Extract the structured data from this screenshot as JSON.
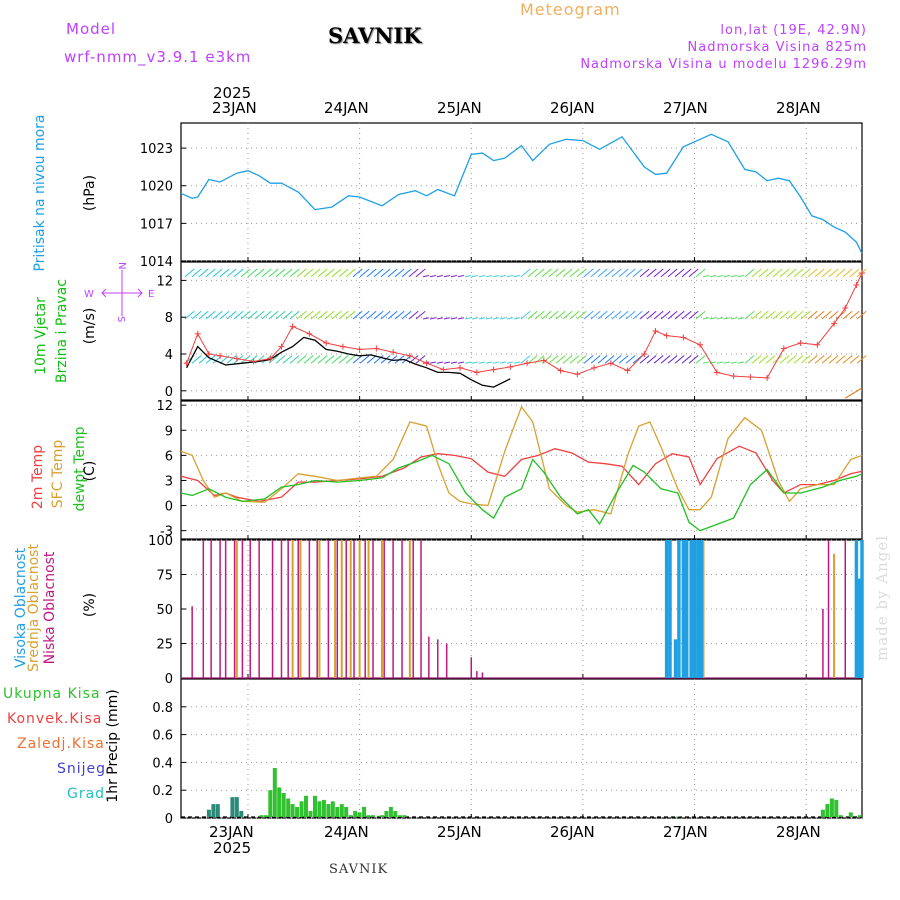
{
  "header": {
    "model_label": "Model",
    "model_name": "wrf-nmm_v3.9.1 e3km",
    "title": "SAVNIK",
    "product": "Meteogram",
    "coords": "lon,lat (19E, 42.9N)",
    "elevation": "Nadmorska Visina 825m",
    "model_elevation": "Nadmorska Visina u modelu 1296.29m"
  },
  "date_axis": {
    "year": "2025",
    "days": [
      "23JAN",
      "24JAN",
      "25JAN",
      "26JAN",
      "27JAN",
      "28JAN"
    ]
  },
  "footer": {
    "station": "SAVNIK",
    "credit": "made by Angel"
  },
  "colors": {
    "pressure": "#1ea0e6",
    "wind_label": "#10c010",
    "temp2m": "#f04040",
    "sfc_temp": "#d8a030",
    "dewpt": "#20c020",
    "high_cloud": "#20a0e0",
    "mid_cloud": "#d8a030",
    "low_cloud": "#c01880",
    "precip_total": "#30c030",
    "precip_conv": "#f04040",
    "precip_frz": "#f07030",
    "precip_snow": "#4040d0",
    "precip_grad": "#20c0c0",
    "compass": "#c040ff"
  },
  "labels": {
    "pressure": [
      "Pritisak na nivou mora",
      "(hPa)"
    ],
    "wind": [
      "10m Vjetar",
      "Brzina i Pravac",
      "(m/s)"
    ],
    "compass": [
      "W",
      "E",
      "N",
      "S"
    ],
    "temp": [
      "2m Temp",
      "SFC Temp",
      "dewpt Temp",
      "(C)"
    ],
    "cloud": [
      "Visoka Oblacnost",
      "Srednja Oblacnost",
      "Niska Oblacnost",
      "(%)"
    ],
    "precip_legend": [
      "Ukupna Kisa",
      "Konvek.Kisa",
      "Zaledj.Kisa",
      "Snijeg",
      "Grad"
    ],
    "precip_axis": "1hr Precip (mm)"
  },
  "chart_data": [
    {
      "type": "line",
      "panel": "pressure",
      "title": "Pritisak na nivou mora",
      "ylabel": "(hPa)",
      "ylim": [
        1014,
        1025
      ],
      "yticks": [
        "1014",
        "1017",
        "1020",
        "1023"
      ],
      "xlim": [
        -0.6,
        5.5
      ],
      "series": [
        {
          "name": "MSLP",
          "x": [
            -0.6,
            -0.5,
            -0.45,
            -0.35,
            -0.25,
            -0.1,
            0,
            0.1,
            0.2,
            0.3,
            0.45,
            0.6,
            0.75,
            0.9,
            1.0,
            1.2,
            1.35,
            1.5,
            1.6,
            1.7,
            1.85,
            2.0,
            2.1,
            2.2,
            2.3,
            2.45,
            2.55,
            2.7,
            2.85,
            3.0,
            3.15,
            3.35,
            3.55,
            3.65,
            3.75,
            3.9,
            4.0,
            4.15,
            4.3,
            4.45,
            4.55,
            4.65,
            4.75,
            4.85,
            4.95,
            5.05,
            5.15,
            5.25,
            5.35,
            5.45,
            5.5
          ],
          "values": [
            1019.4,
            1019.0,
            1019.1,
            1020.5,
            1020.3,
            1021.0,
            1021.2,
            1020.8,
            1020.2,
            1020.2,
            1019.5,
            1018.1,
            1018.3,
            1019.2,
            1019.1,
            1018.4,
            1019.3,
            1019.6,
            1019.2,
            1019.7,
            1019.2,
            1022.5,
            1022.6,
            1022.0,
            1022.2,
            1023.2,
            1022.0,
            1023.3,
            1023.7,
            1023.6,
            1022.9,
            1023.9,
            1021.5,
            1020.9,
            1021.0,
            1023.1,
            1023.5,
            1024.1,
            1023.5,
            1021.3,
            1021.1,
            1020.4,
            1020.6,
            1020.4,
            1019.1,
            1017.6,
            1017.3,
            1016.7,
            1016.3,
            1015.5,
            1014.6
          ]
        }
      ]
    },
    {
      "type": "line",
      "panel": "wind",
      "title": "10m Vjetar Brzina i Pravac",
      "ylabel": "(m/s)",
      "ylim": [
        -1,
        14
      ],
      "yticks": [
        "0",
        "4",
        "8",
        "12"
      ],
      "xlim": [
        -0.6,
        5.5
      ],
      "series": [
        {
          "name": "wind speed (black)",
          "x": [
            -0.55,
            -0.45,
            -0.35,
            -0.2,
            -0.05,
            0.1,
            0.2,
            0.3,
            0.4,
            0.5,
            0.6,
            0.7,
            0.8,
            0.9,
            1.0,
            1.1,
            1.2,
            1.3,
            1.4,
            1.5,
            1.6,
            1.7,
            1.8,
            1.9,
            2.0,
            2.1,
            2.2,
            2.35
          ],
          "values": [
            2.5,
            4.8,
            3.6,
            2.8,
            3.0,
            3.2,
            3.4,
            4.2,
            4.8,
            5.8,
            5.5,
            4.5,
            4.3,
            4.0,
            3.8,
            3.9,
            3.6,
            3.3,
            3.4,
            2.9,
            2.5,
            2.0,
            2.0,
            1.9,
            1.2,
            0.6,
            0.4,
            1.3
          ]
        },
        {
          "name": "gust (red markers)",
          "x": [
            -0.55,
            -0.45,
            -0.35,
            -0.25,
            -0.1,
            0.05,
            0.2,
            0.3,
            0.4,
            0.55,
            0.7,
            0.85,
            1.0,
            1.15,
            1.3,
            1.45,
            1.6,
            1.75,
            1.9,
            2.05,
            2.2,
            2.35,
            2.5,
            2.65,
            2.8,
            2.95,
            3.1,
            3.25,
            3.4,
            3.55,
            3.65,
            3.75,
            3.9,
            4.05,
            4.2,
            4.35,
            4.5,
            4.65,
            4.8,
            4.95,
            5.1,
            5.25,
            5.35,
            5.45,
            5.5
          ],
          "values": [
            3.0,
            6.2,
            4.0,
            3.8,
            3.5,
            3.2,
            3.5,
            4.8,
            7.0,
            6.2,
            5.2,
            4.8,
            4.5,
            4.6,
            4.2,
            3.8,
            3.0,
            2.3,
            2.5,
            2.0,
            2.3,
            2.6,
            3.0,
            3.3,
            2.2,
            1.8,
            2.5,
            3.0,
            2.2,
            4.0,
            6.5,
            6.0,
            5.8,
            5.0,
            2.0,
            1.6,
            1.5,
            1.4,
            4.6,
            5.2,
            5.0,
            7.3,
            9.0,
            11.5,
            12.8
          ]
        }
      ]
    },
    {
      "type": "line",
      "panel": "temperature",
      "title": "2m Temp / SFC Temp / dewpt Temp",
      "ylabel": "(C)",
      "ylim": [
        -4,
        12.5
      ],
      "yticks": [
        "-3",
        "0",
        "3",
        "6",
        "9",
        "12"
      ],
      "xlim": [
        -0.6,
        5.5
      ],
      "series": [
        {
          "name": "2m Temp",
          "x": [
            -0.6,
            -0.45,
            -0.3,
            -0.2,
            -0.1,
            0.1,
            0.3,
            0.45,
            0.6,
            0.8,
            1.0,
            1.2,
            1.4,
            1.55,
            1.7,
            1.85,
            2.0,
            2.15,
            2.3,
            2.45,
            2.6,
            2.75,
            2.9,
            3.05,
            3.2,
            3.35,
            3.5,
            3.65,
            3.8,
            3.95,
            4.05,
            4.2,
            4.4,
            4.55,
            4.7,
            4.8,
            4.95,
            5.1,
            5.25,
            5.4,
            5.5
          ],
          "values": [
            3.5,
            3.0,
            1.2,
            1.5,
            1.0,
            0.5,
            1.0,
            2.8,
            2.8,
            3.0,
            3.2,
            3.5,
            4.5,
            5.8,
            6.2,
            6.0,
            5.6,
            4.0,
            3.5,
            5.5,
            6.0,
            6.8,
            6.3,
            5.2,
            5.0,
            4.7,
            2.5,
            5.0,
            6.2,
            5.8,
            2.5,
            5.6,
            7.1,
            6.3,
            3.0,
            1.5,
            2.5,
            2.5,
            3.0,
            3.8,
            4.1
          ]
        },
        {
          "name": "SFC Temp",
          "x": [
            -0.6,
            -0.5,
            -0.4,
            -0.3,
            -0.2,
            -0.05,
            0.15,
            0.3,
            0.45,
            0.6,
            0.8,
            1.0,
            1.15,
            1.3,
            1.45,
            1.6,
            1.7,
            1.8,
            1.9,
            2.0,
            2.15,
            2.3,
            2.45,
            2.55,
            2.7,
            2.85,
            2.95,
            3.1,
            3.25,
            3.4,
            3.5,
            3.6,
            3.7,
            3.85,
            3.95,
            4.05,
            4.15,
            4.3,
            4.45,
            4.6,
            4.75,
            4.85,
            4.95,
            5.1,
            5.25,
            5.4,
            5.5
          ],
          "values": [
            6.5,
            6.0,
            3.0,
            1.0,
            1.5,
            0.5,
            0.4,
            2.0,
            3.8,
            3.5,
            3.0,
            3.3,
            3.5,
            5.5,
            10.0,
            9.5,
            5.0,
            1.5,
            0.5,
            0.2,
            0.0,
            6.5,
            11.8,
            10.0,
            2.0,
            0.0,
            -0.8,
            -0.5,
            -1.0,
            6.0,
            9.5,
            10.0,
            7.0,
            2.0,
            -0.5,
            -0.5,
            1.0,
            8.0,
            10.5,
            9.0,
            3.0,
            0.5,
            2.0,
            2.5,
            2.5,
            5.5,
            6.0
          ]
        },
        {
          "name": "dewpt Temp",
          "x": [
            -0.6,
            -0.5,
            -0.35,
            -0.2,
            -0.05,
            0.15,
            0.3,
            0.45,
            0.6,
            0.8,
            1.0,
            1.2,
            1.35,
            1.5,
            1.65,
            1.8,
            1.95,
            2.1,
            2.2,
            2.3,
            2.45,
            2.55,
            2.65,
            2.8,
            2.95,
            3.05,
            3.15,
            3.3,
            3.45,
            3.55,
            3.7,
            3.85,
            3.95,
            4.05,
            4.15,
            4.35,
            4.5,
            4.65,
            4.8,
            4.95,
            5.15,
            5.3,
            5.45,
            5.5
          ],
          "values": [
            1.5,
            1.2,
            2.0,
            1.0,
            0.5,
            0.8,
            2.2,
            2.5,
            3.0,
            2.8,
            3.0,
            3.3,
            4.5,
            5.2,
            6.0,
            5.0,
            1.5,
            -0.5,
            -1.5,
            1.0,
            2.0,
            5.5,
            4.0,
            1.0,
            -1.0,
            -0.5,
            -2.2,
            1.5,
            4.8,
            4.0,
            2.0,
            1.5,
            -2.0,
            -3.0,
            -2.5,
            -1.5,
            2.5,
            4.3,
            1.5,
            1.5,
            2.2,
            3.0,
            3.5,
            3.8
          ]
        }
      ]
    },
    {
      "type": "bar",
      "panel": "cloud",
      "title": "Visoka / Srednja / Niska Oblacnost",
      "ylabel": "(%)",
      "ylim": [
        0,
        100
      ],
      "yticks": [
        "0",
        "25",
        "50",
        "75",
        "100"
      ],
      "xlim": [
        -0.6,
        5.5
      ],
      "series": [
        {
          "name": "Niska Oblacnost",
          "x": [
            -0.5,
            -0.4,
            -0.33,
            -0.25,
            -0.2,
            -0.12,
            -0.05,
            0.02,
            0.1,
            0.22,
            0.3,
            0.36,
            0.45,
            0.55,
            0.62,
            0.72,
            0.8,
            0.88,
            0.95,
            1.05,
            1.12,
            1.22,
            1.3,
            1.38,
            1.48,
            1.55,
            1.62,
            1.7,
            1.78,
            2.0,
            2.05,
            2.1,
            5.15,
            5.2,
            5.35,
            5.45
          ],
          "values": [
            52,
            100,
            100,
            100,
            100,
            100,
            100,
            100,
            100,
            100,
            100,
            100,
            100,
            100,
            100,
            100,
            100,
            100,
            100,
            100,
            100,
            100,
            100,
            100,
            100,
            100,
            30,
            28,
            25,
            15,
            5,
            4,
            50,
            100,
            100,
            100
          ]
        },
        {
          "name": "Srednja Oblacnost",
          "x": [
            -0.1,
            0.4,
            0.47,
            0.64,
            0.78,
            0.84,
            0.92,
            1.0,
            1.08,
            1.2,
            1.45,
            4.06,
            4.08,
            5.25
          ],
          "values": [
            100,
            100,
            100,
            100,
            100,
            100,
            100,
            100,
            100,
            100,
            100,
            100,
            100,
            90
          ]
        },
        {
          "name": "Visoka Oblacnost",
          "x": [
            3.75,
            3.78,
            3.83,
            3.86,
            3.9,
            3.93,
            3.97,
            4.0,
            4.03,
            4.06,
            5.45,
            5.48,
            5.5
          ],
          "values": [
            100,
            100,
            28,
            100,
            100,
            100,
            100,
            100,
            100,
            100,
            100,
            72,
            100
          ]
        }
      ]
    },
    {
      "type": "bar",
      "panel": "precip",
      "title": "1hr Precip",
      "ylabel": "1hr Precip (mm)",
      "ylim": [
        0,
        1.0
      ],
      "yticks": [
        "0",
        "0.2",
        "0.4",
        "0.6",
        "0.8"
      ],
      "xlim": [
        -0.6,
        5.5
      ],
      "series": [
        {
          "name": "Ukupna Kisa",
          "x": [
            -0.35,
            -0.31,
            -0.27,
            -0.14,
            -0.1,
            -0.06,
            0.12,
            0.16,
            0.2,
            0.24,
            0.28,
            0.32,
            0.36,
            0.4,
            0.44,
            0.48,
            0.52,
            0.56,
            0.6,
            0.64,
            0.68,
            0.72,
            0.76,
            0.8,
            0.84,
            0.88,
            0.92,
            0.96,
            1.0,
            1.04,
            1.08,
            1.12,
            1.2,
            1.24,
            1.28,
            1.32,
            1.36,
            1.4,
            3.85,
            5.15,
            5.19,
            5.23,
            5.27,
            5.31,
            5.4,
            5.48
          ],
          "values": [
            0.06,
            0.1,
            0.1,
            0.15,
            0.15,
            0.05,
            0.02,
            0.02,
            0.2,
            0.36,
            0.22,
            0.18,
            0.14,
            0.1,
            0.08,
            0.12,
            0.16,
            0.05,
            0.16,
            0.12,
            0.13,
            0.1,
            0.12,
            0.08,
            0.1,
            0.08,
            0.02,
            0.05,
            0.04,
            0.08,
            0.02,
            0.02,
            0.02,
            0.05,
            0.08,
            0.05,
            0.02,
            0.02,
            0.01,
            0.06,
            0.1,
            0.14,
            0.13,
            0.02,
            0.04,
            0.02
          ]
        }
      ]
    }
  ]
}
